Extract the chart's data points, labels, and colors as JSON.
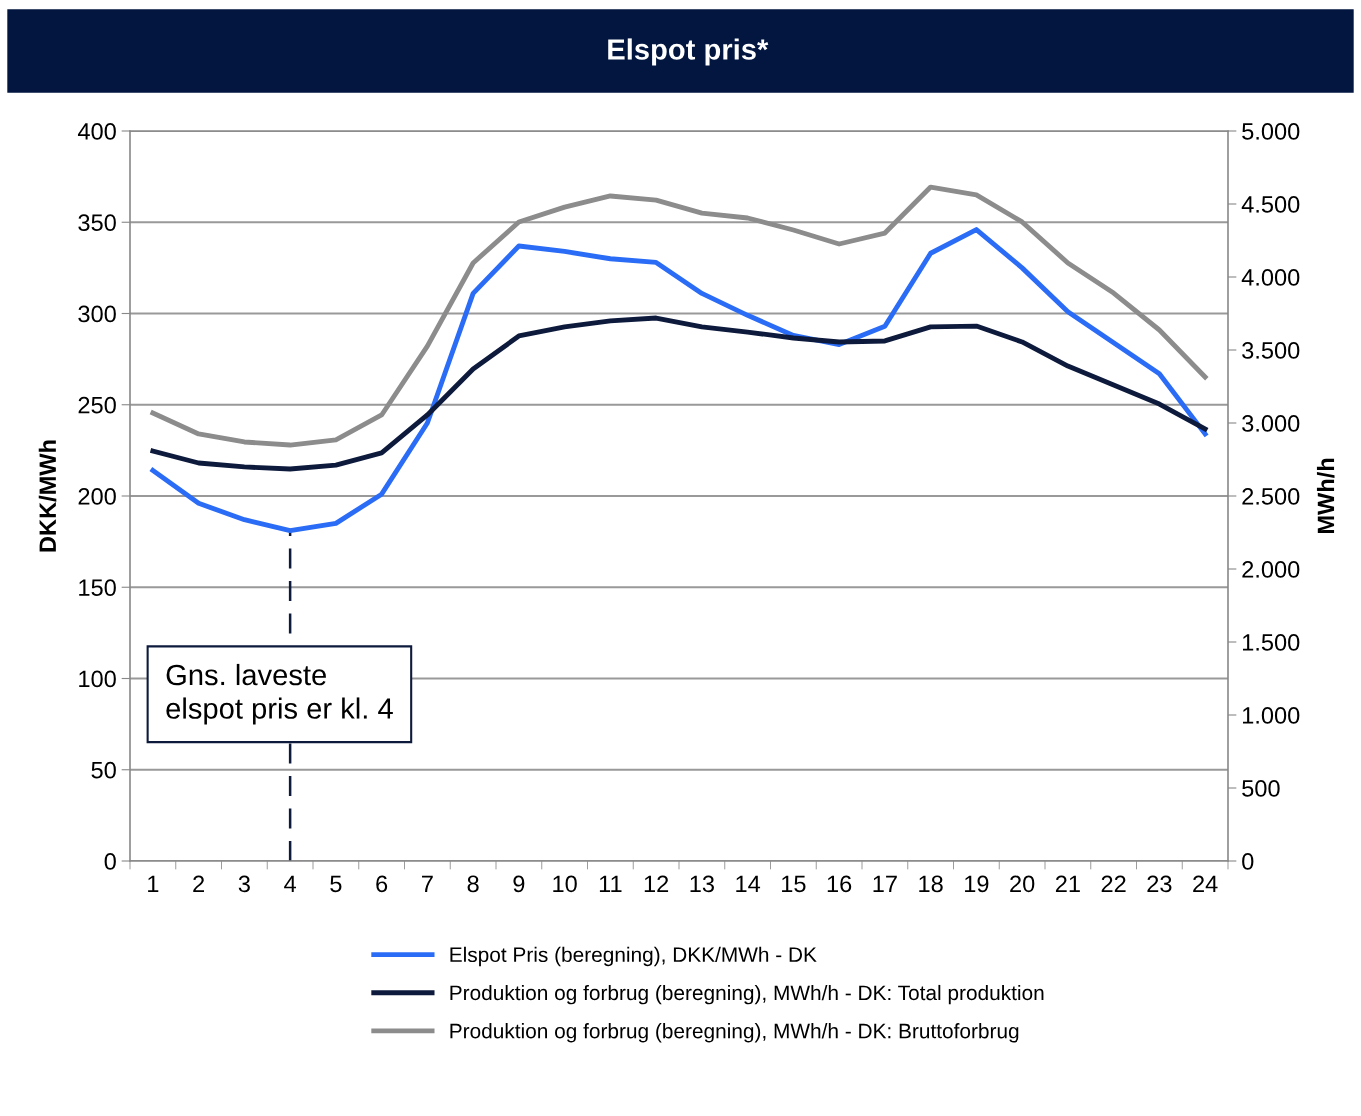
{
  "chart_data": {
    "type": "line",
    "title": "Elspot pris*",
    "ylabel": "DKK/MWh",
    "y2label": "MWh/h",
    "categories": [
      "1",
      "2",
      "3",
      "4",
      "5",
      "6",
      "7",
      "8",
      "9",
      "10",
      "11",
      "12",
      "13",
      "14",
      "15",
      "16",
      "17",
      "18",
      "19",
      "20",
      "21",
      "22",
      "23",
      "24"
    ],
    "series": [
      {
        "name": "Elspot Pris (beregning), DKK/MWh - DK",
        "color": "#2a6cf6",
        "values": [
          214,
          196,
          187,
          181,
          185,
          201,
          240,
          311,
          337,
          334,
          330,
          328,
          311,
          299,
          288,
          283,
          293,
          333,
          346,
          325,
          301,
          284,
          267,
          234
        ]
      },
      {
        "name": "Produktion og forbrug (beregning), MWh/h - DK: Total produktion",
        "color": "#0d1a3c",
        "axis": "y2",
        "values": [
          2808,
          2726,
          2699,
          2685,
          2712,
          2795,
          3055,
          3370,
          3596,
          3658,
          3699,
          3719,
          3658,
          3623,
          3582,
          3555,
          3562,
          3658,
          3664,
          3555,
          3390,
          3260,
          3130,
          2959
        ]
      },
      {
        "name": "Produktion og forbrug (beregning), MWh/h - DK: Bruttoforbrug",
        "color": "#8c8c8c",
        "axis": "y2",
        "values": [
          3068,
          2925,
          2870,
          2849,
          2884,
          3055,
          3527,
          4096,
          4377,
          4479,
          4555,
          4527,
          4438,
          4404,
          4322,
          4226,
          4301,
          4616,
          4562,
          4377,
          4096,
          3890,
          3637,
          3315
        ]
      }
    ],
    "ylim": [
      0,
      400
    ],
    "yticks": [
      0,
      50,
      100,
      150,
      200,
      250,
      300,
      350,
      400
    ],
    "y2lim": [
      0,
      5000
    ],
    "y2ticks": [
      0,
      {
        "value": 500,
        "label": "500"
      },
      {
        "value": 1000,
        "label": "1.000"
      },
      {
        "value": 1500,
        "label": "1.500"
      },
      {
        "value": 2000,
        "label": "2.000"
      },
      {
        "value": 2500,
        "label": "2.500"
      },
      {
        "value": 3000,
        "label": "3.000"
      },
      {
        "value": 3500,
        "label": "3.500"
      },
      {
        "value": 4000,
        "label": "4.000"
      },
      {
        "value": 4500,
        "label": "4.500"
      },
      {
        "value": 5000,
        "label": "5.000"
      }
    ],
    "ref_lines": [
      {
        "axis": "x",
        "value": "4",
        "color": "#0d1a3c",
        "line_style": "dashed"
      }
    ],
    "annotations": [
      "Gns. laveste\nelspot pris er kl. 4"
    ],
    "grid": "y",
    "legend": "bottom",
    "marker": "none",
    "line_style": "solid"
  }
}
